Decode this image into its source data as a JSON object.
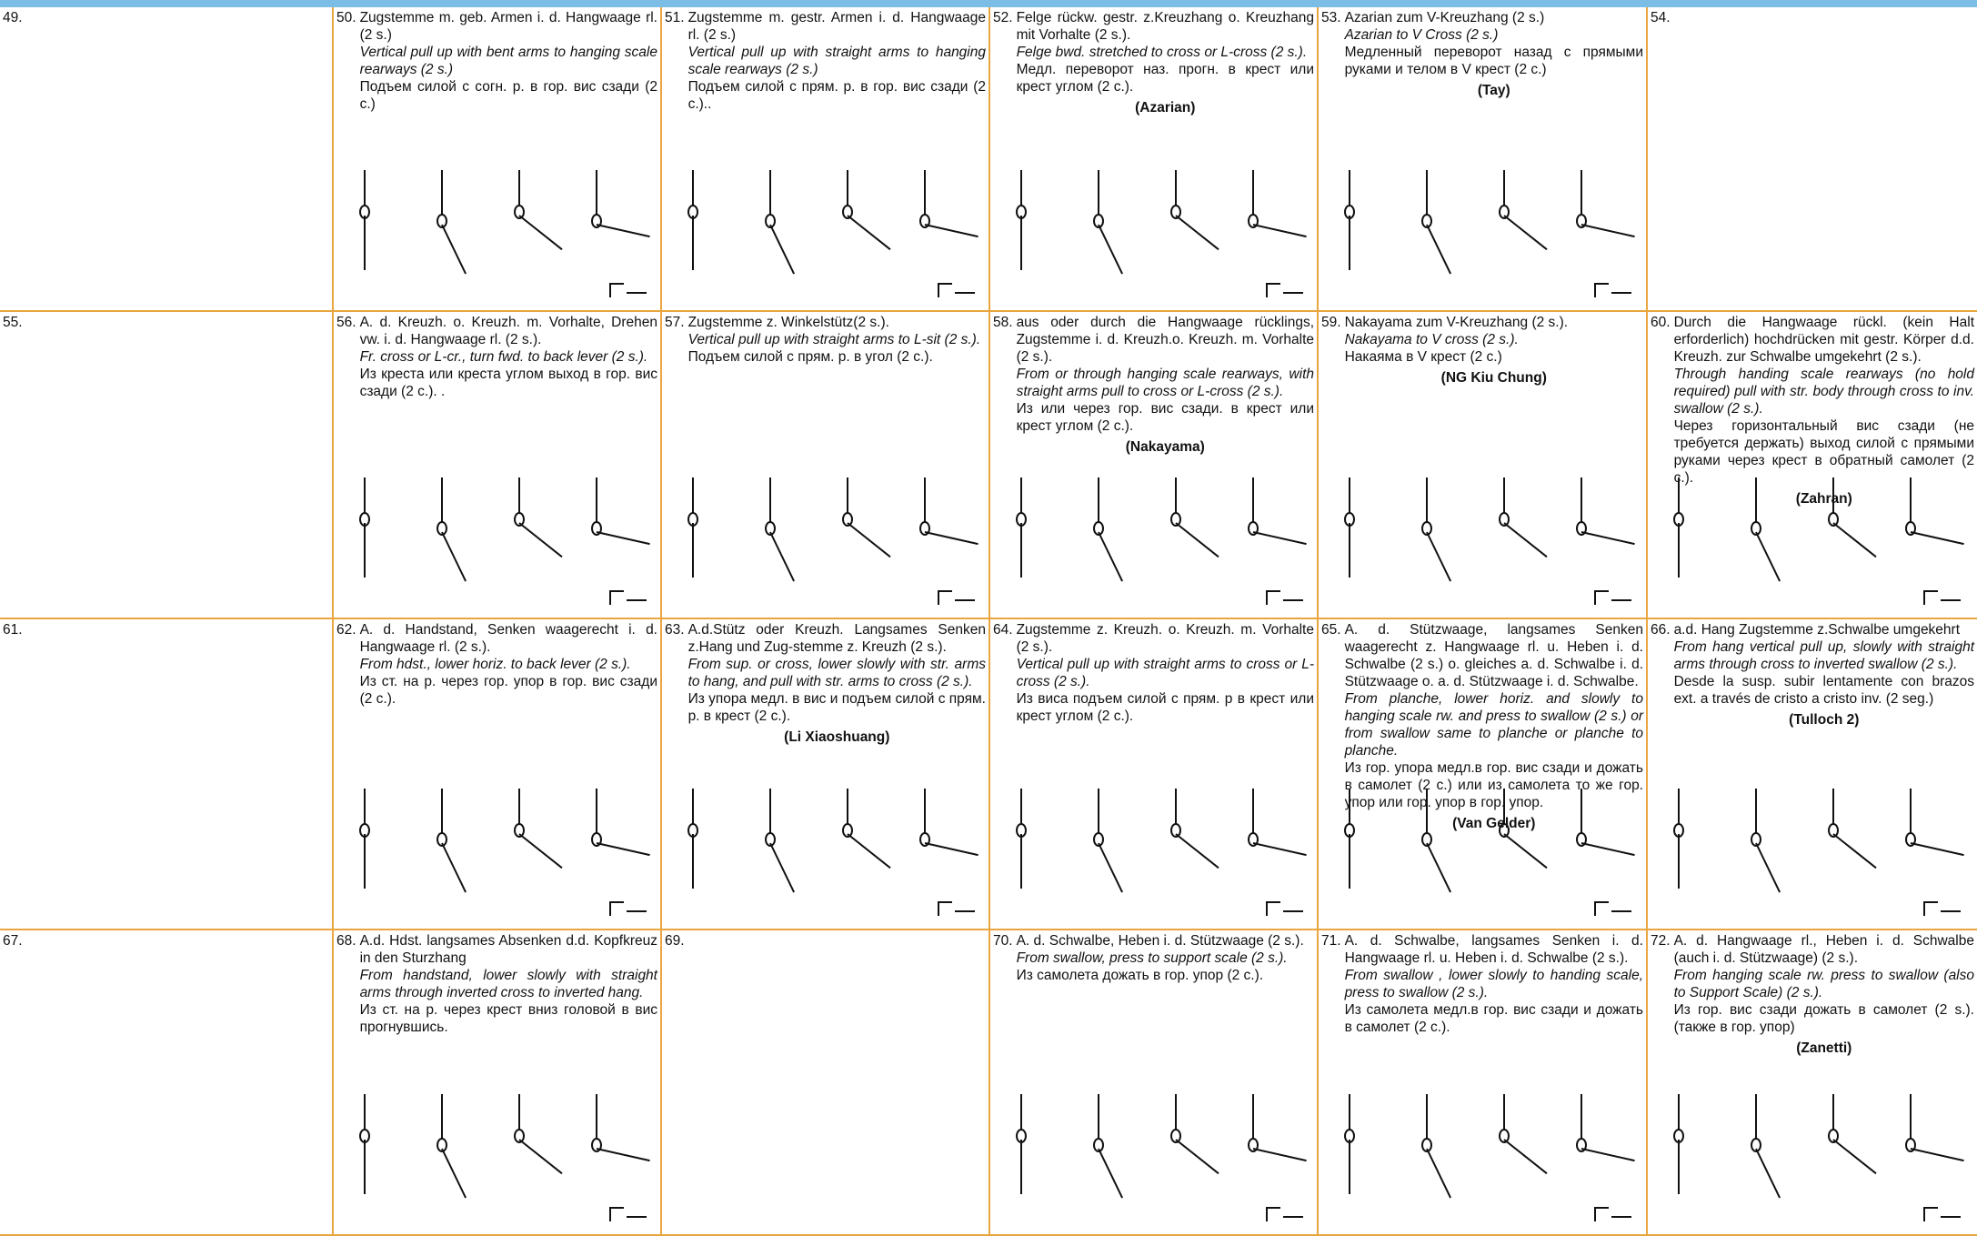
{
  "rows": [
    [
      {
        "number": "49."
      },
      {
        "number": "50.",
        "de": "Zugstemme m. geb. Armen i. d. Hangwaage rl. (2 s.)",
        "en": "Vertical pull up with bent arms to hanging scale rearways (2 s.)",
        "ru": "Подъем силой с согн. р. в гор. вис сзади (2 с.)"
      },
      {
        "number": "51.",
        "de": "Zugstemme m. gestr. Armen i. d. Hangwaage rl. (2 s.)",
        "en": "Vertical pull up with straight arms to hanging scale rearways (2 s.)",
        "ru": "Подъем силой с прям. р. в гор. вис сзади (2 с.).."
      },
      {
        "number": "52.",
        "de": "Felge rückw. gestr. z.Kreuzhang o. Kreuzhang mit Vorhalte (2 s.).",
        "en": "Felge bwd. stretched to cross or L-cross (2 s.).",
        "ru": "Медл. переворот наз. прогн. в крест или крест углом (2 с.).",
        "gymnast": "(Azarian)"
      },
      {
        "number": "53.",
        "de": "Azarian zum V-Kreuzhang (2 s.)",
        "en": "Azarian to V Cross (2 s.)",
        "ru": "Медленный переворот назад с прямыми руками и телом в V крест (2 с.)",
        "gymnast": "(Tay)"
      },
      {
        "number": "54."
      }
    ],
    [
      {
        "number": "55."
      },
      {
        "number": "56.",
        "de": "A. d. Kreuzh. o. Kreuzh. m. Vorhalte, Drehen vw. i. d. Hangwaage rl. (2 s.).",
        "en": "Fr. cross or L-cr., turn fwd. to back lever (2 s.).",
        "ru": "Из креста или креста углом выход в гор. вис сзади (2 с.). ."
      },
      {
        "number": "57.",
        "de": "Zugstemme z. Winkelstütz(2 s.).",
        "en": "Vertical pull up with straight arms to L-sit (2 s.).",
        "ru": "Подъем силой с прям. р. в угол (2 с.)."
      },
      {
        "number": "58.",
        "de": "aus oder durch die Hangwaage rücklings, Zugstemme i. d. Kreuzh.o. Kreuzh. m. Vorhalte (2 s.).",
        "en": "From or through hanging scale rearways, with straight arms pull to cross or L-cross (2 s.).",
        "ru": "Из или через гор. вис сзади. в крест или крест углом (2 с.).",
        "gymnast": "(Nakayama)"
      },
      {
        "number": "59.",
        "de": "Nakayama zum V-Kreuzhang (2 s.).",
        "en": "Nakayama to V cross (2 s.).",
        "ru": "Накаяма в V крест (2 с.)",
        "gymnast": "(NG Kiu Chung)"
      },
      {
        "number": "60.",
        "de": "Durch die Hangwaage rückl. (kein Halt erforderlich) hochdrücken mit gestr. Körper d.d. Kreuzh. zur Schwalbe umgekehrt (2 s.).",
        "en": "Through handing scale rearways (no hold required) pull with str. body through cross to inv. swallow (2 s.).",
        "ru": "Через горизонтальный вис сзади (не требуется держать) выход силой с прямыми руками через крест в обратный самолет (2 с.).",
        "gymnast": "(Zahran)"
      }
    ],
    [
      {
        "number": "61."
      },
      {
        "number": "62.",
        "de": "A. d. Handstand, Senken waagerecht i. d. Hangwaage rl. (2 s.).",
        "en": "From hdst., lower horiz. to back lever (2 s.).",
        "ru": "Из ст. на р. через гор. упор в гор. вис сзади (2 с.)."
      },
      {
        "number": "63.",
        "de": "A.d.Stütz oder Kreuzh. Langsames Senken z.Hang und Zug-stemme z. Kreuzh (2 s.).",
        "en": "From sup. or cross, lower slowly with str. arms to hang, and pull with str. arms to cross (2 s.).",
        "ru": "Из упора медл. в вис и подъем силой с прям. р. в крест (2 с.).",
        "gymnast": "(Li Xiaoshuang)"
      },
      {
        "number": "64.",
        "de": "Zugstemme z. Kreuzh. o. Kreuzh. m. Vorhalte (2 s.).",
        "en": "Vertical pull up with straight arms to cross or L-cross (2 s.).",
        "ru": "Из виса подъем силой с прям. р в крест или крест углом (2 с.)."
      },
      {
        "number": "65.",
        "de": "A. d. Stützwaage, langsames Senken waagerecht z. Hangwaage rl. u. Heben i. d. Schwalbe (2 s.) o. gleiches a. d. Schwalbe i. d. Stützwaage o. a. d. Stützwaage i. d. Schwalbe.",
        "en": "From planche, lower horiz. and slowly to hanging scale rw. and press to swallow (2 s.) or from swallow same to planche or planche to planche.",
        "ru": "Из гор. упора медл.в гор. вис сзади и дожать в самолет (2 с.) или из самолета то же гор. упор или гор. упор в гор. упор.",
        "gymnast": "(Van Gelder)"
      },
      {
        "number": "66.",
        "de": "a.d. Hang Zugstemme z.Schwalbe umgekehrt",
        "en": "From hang vertical pull up, slowly with straight arms through cross to inverted swallow (2 s.).",
        "es": "Desde la susp. subir lentamente con brazos ext. a través de cristo a cristo inv. (2 seg.)",
        "gymnast": "(Tulloch 2)"
      }
    ],
    [
      {
        "number": "67."
      },
      {
        "number": "68.",
        "de": "A.d. Hdst. langsames Absenken d.d. Kopfkreuz in den Sturzhang",
        "en": "From handstand, lower slowly with straight arms through inverted cross to inverted hang.",
        "ru": "Из ст. на р. через крест вниз головой в вис прогнувшись."
      },
      {
        "number": "69."
      },
      {
        "number": "70.",
        "de": "A. d. Schwalbe, Heben i. d. Stützwaage (2 s.).",
        "en": "From swallow, press to support scale (2 s.).",
        "ru": "Из самолета дожать в гор. упор (2 с.)."
      },
      {
        "number": "71.",
        "de": "A. d. Schwalbe, langsames Senken i. d. Hangwaage rl. u. Heben i. d. Schwalbe (2 s.).",
        "en": "From swallow , lower slowly to handing scale, press to swallow (2 s.).",
        "ru": "Из самолета медл.в гор. вис сзади и дожать в самолет (2 с.)."
      },
      {
        "number": "72.",
        "de": "A. d. Hangwaage rl., Heben i. d. Schwalbe (auch i. d. Stützwaage) (2 s.).",
        "en": "From hanging scale rw. press to swallow (also to Support Scale) (2 s.).",
        "ru": "Из гор. вис сзади дожать в самолет (2 s.). (также в гор. упор)",
        "gymnast": "(Zanetti)"
      }
    ]
  ]
}
